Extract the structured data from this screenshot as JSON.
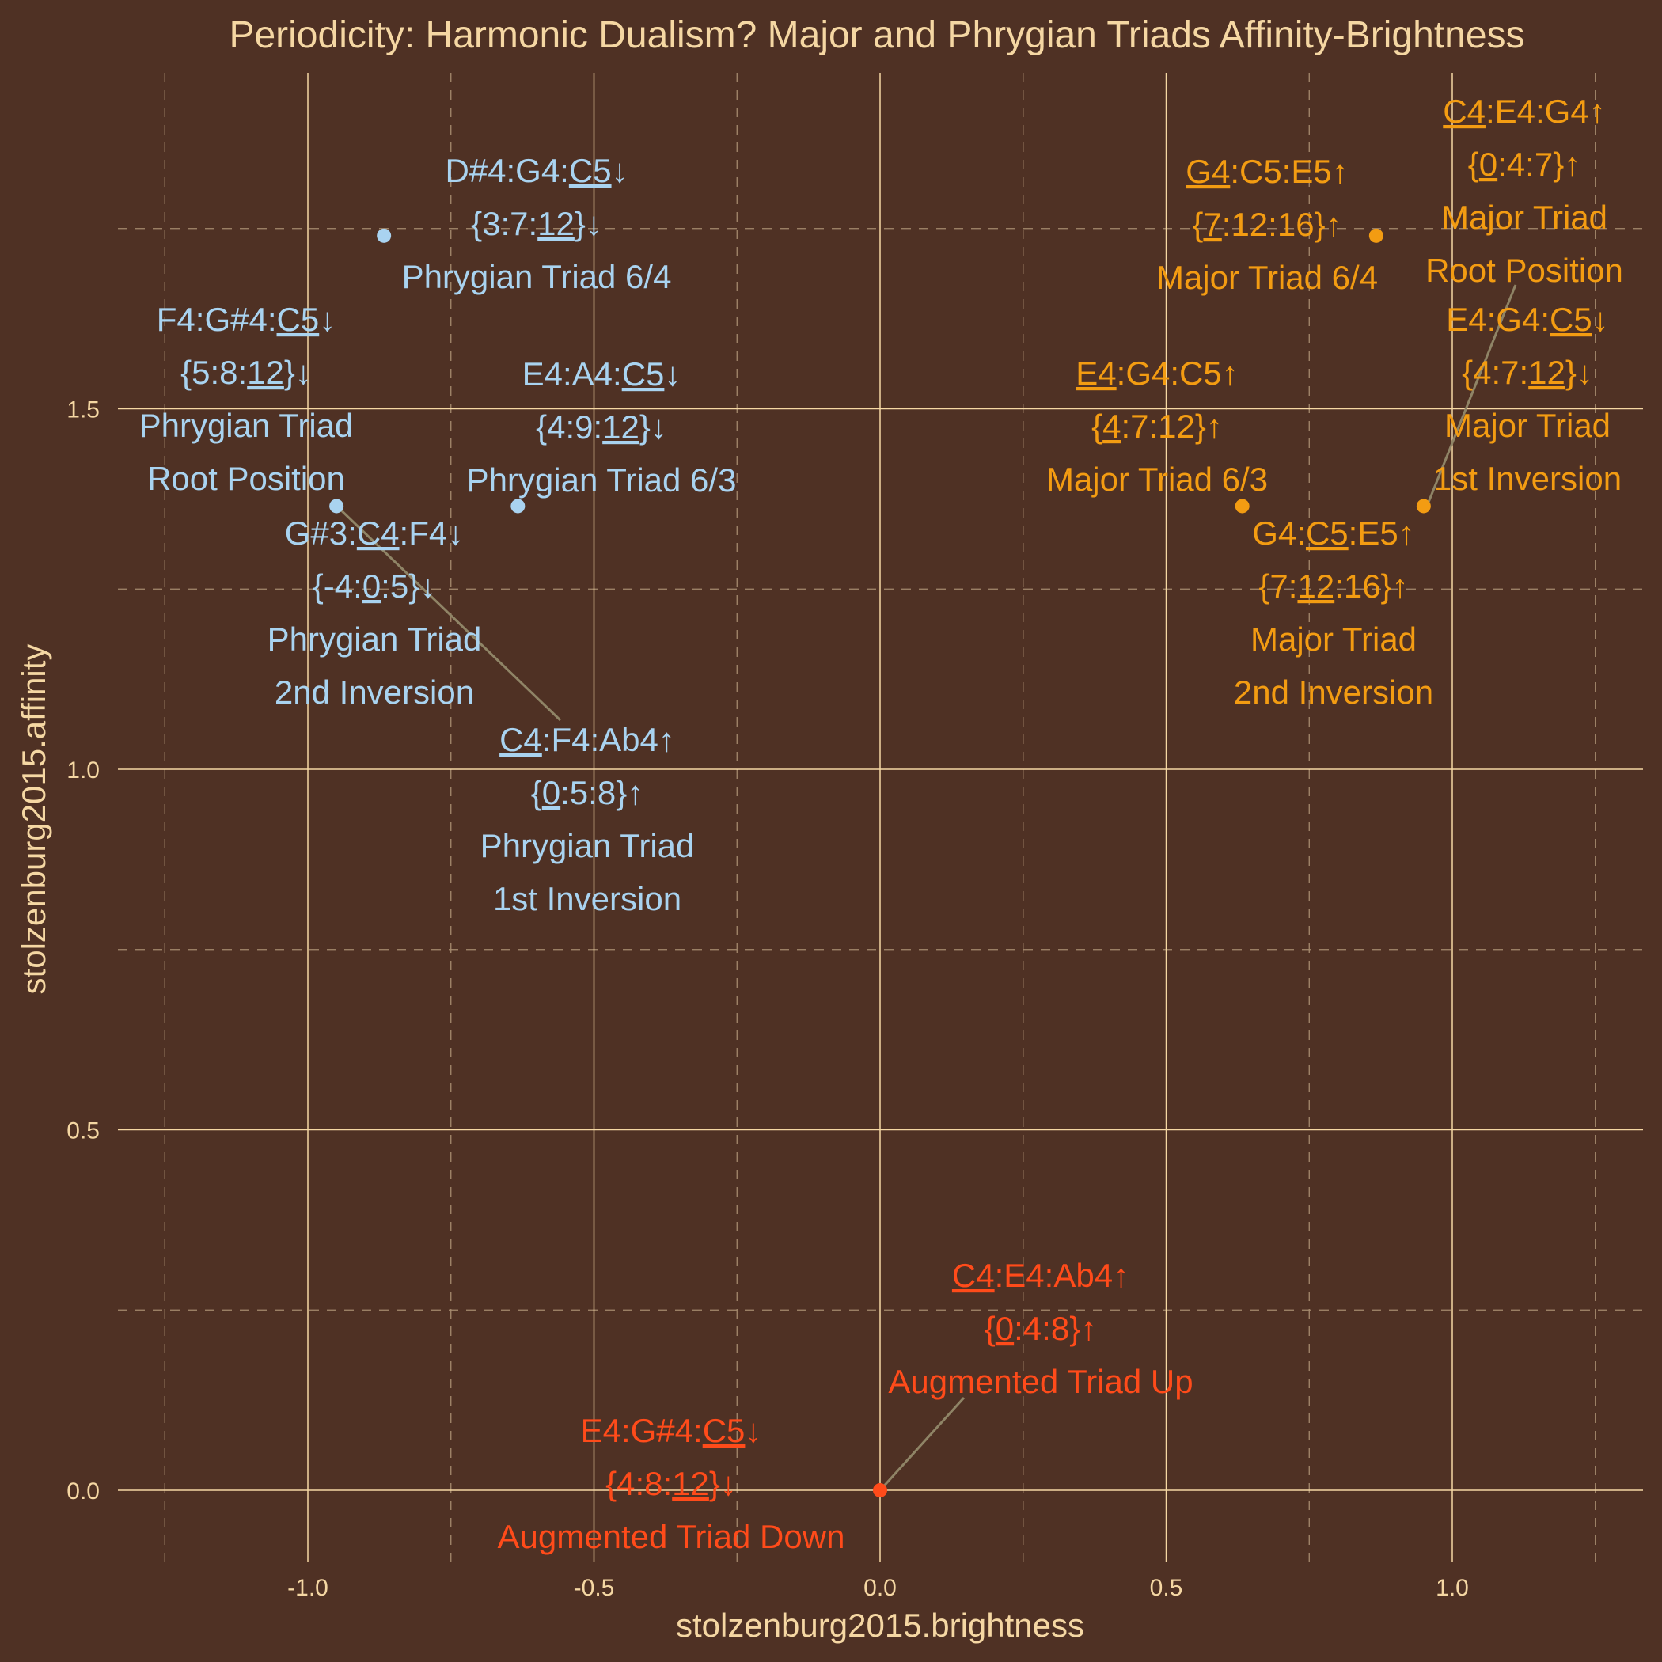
{
  "chart_data": {
    "type": "scatter",
    "title": "Periodicity: Harmonic Dualism? Major and Phrygian Triads Affinity-Brightness",
    "xlabel": "stolzenburg2015.brightness",
    "ylabel": "stolzenburg2015.affinity",
    "xlim": [
      -1.25,
      1.3
    ],
    "ylim": [
      -0.1,
      1.8
    ],
    "x_major_ticks": [
      -1.0,
      -0.5,
      0.0,
      0.5,
      1.0
    ],
    "x_tick_labels": [
      "-1.0",
      "-0.5",
      "0.0",
      "0.5",
      "1.0"
    ],
    "x_minor_ticks": [
      -1.25,
      -0.75,
      -0.25,
      0.25,
      0.75,
      1.25
    ],
    "y_major_ticks": [
      0.0,
      0.5,
      1.0,
      1.5
    ],
    "y_tick_labels": [
      "0.0",
      "0.5",
      "1.0",
      "1.5"
    ],
    "y_minor_ticks": [
      0.25,
      0.75,
      1.25,
      1.75
    ],
    "grid": true,
    "legend": "none",
    "colors": {
      "background": "#4f3124",
      "text": "#f5d7a3",
      "major": "#f39c12",
      "phrygian": "#a9d3f0",
      "augmented": "#ff4b1a",
      "leader": "#8f8466"
    },
    "points": [
      {
        "group": "phrygian",
        "x": -0.867,
        "y": 1.74,
        "label_lines": [
          [
            "D#4:G4:",
            [
              "C5"
            ],
            "↓"
          ],
          [
            "{3:7:",
            [
              "12"
            ],
            "}↓"
          ],
          [
            "Phrygian Triad 6/4"
          ]
        ]
      },
      {
        "group": "phrygian",
        "x": -0.95,
        "y": 1.365,
        "label_lines": [
          [
            "F4:G#4:",
            [
              "C5"
            ],
            "↓"
          ],
          [
            "{5:8:",
            [
              "12"
            ],
            "}↓"
          ],
          [
            "Phrygian Triad"
          ],
          [
            "Root Position"
          ]
        ]
      },
      {
        "group": "phrygian",
        "x": -0.95,
        "y": 1.365,
        "label_lines": [
          [
            "G#3:",
            [
              "C4"
            ],
            ":F4↓"
          ],
          [
            "{-4:",
            [
              "0"
            ],
            ":5}↓"
          ],
          [
            "Phrygian Triad"
          ],
          [
            "2nd Inversion"
          ]
        ]
      },
      {
        "group": "phrygian",
        "x": -0.633,
        "y": 1.365,
        "label_lines": [
          [
            "E4:A4:",
            [
              "C5"
            ],
            "↓"
          ],
          [
            "{4:9:",
            [
              "12"
            ],
            "}↓"
          ],
          [
            "Phrygian Triad 6/3"
          ]
        ]
      },
      {
        "group": "phrygian",
        "x": -0.95,
        "y": 1.365,
        "label_lines": [
          [
            [
              "C4"
            ],
            ":F4:Ab4↑"
          ],
          [
            "{",
            [
              "0"
            ],
            ":5:8}↑"
          ],
          [
            "Phrygian Triad"
          ],
          [
            "1st Inversion"
          ]
        ]
      },
      {
        "group": "major",
        "x": 0.867,
        "y": 1.74,
        "label_lines": [
          [
            [
              "G4"
            ],
            ":C5:E5↑"
          ],
          [
            "{",
            [
              "7"
            ],
            ":12:16}↑"
          ],
          [
            "Major Triad 6/4"
          ]
        ]
      },
      {
        "group": "major",
        "x": 0.867,
        "y": 1.74,
        "label_lines": [
          [
            [
              "C4"
            ],
            ":E4:G4↑"
          ],
          [
            "{",
            [
              "0"
            ],
            ":4:7}↑"
          ],
          [
            "Major Triad"
          ],
          [
            "Root Position"
          ]
        ]
      },
      {
        "group": "major",
        "x": 0.95,
        "y": 1.365,
        "label_lines": [
          [
            "E4:G4:",
            [
              "C5"
            ],
            "↓"
          ],
          [
            "{4:7:",
            [
              "12"
            ],
            "}↓"
          ],
          [
            "Major Triad"
          ],
          [
            "1st Inversion"
          ]
        ]
      },
      {
        "group": "major",
        "x": 0.633,
        "y": 1.365,
        "label_lines": [
          [
            [
              "E4"
            ],
            ":G4:C5↑"
          ],
          [
            "{",
            [
              "4"
            ],
            ":7:12}↑"
          ],
          [
            "Major Triad 6/3"
          ]
        ]
      },
      {
        "group": "major",
        "x": 0.95,
        "y": 1.365,
        "label_lines": [
          [
            "G4:",
            [
              "C5"
            ],
            ":E5↑"
          ],
          [
            "{7:",
            [
              "12"
            ],
            ":16}↑"
          ],
          [
            "Major Triad"
          ],
          [
            "2nd Inversion"
          ]
        ]
      },
      {
        "group": "augmented",
        "x": 0.0,
        "y": 0.0,
        "label_lines": [
          [
            [
              "C4"
            ],
            ":E4:Ab4↑"
          ],
          [
            "{",
            [
              "0"
            ],
            ":4:8}↑"
          ],
          [
            "Augmented Triad Up"
          ]
        ]
      },
      {
        "group": "augmented",
        "x": 0.0,
        "y": 0.0,
        "label_lines": [
          [
            "E4:G#4:",
            [
              "C5"
            ],
            "↓"
          ],
          [
            "{4:8:",
            [
              "12"
            ],
            "}↓"
          ],
          [
            "Augmented Triad Down"
          ]
        ]
      }
    ]
  }
}
